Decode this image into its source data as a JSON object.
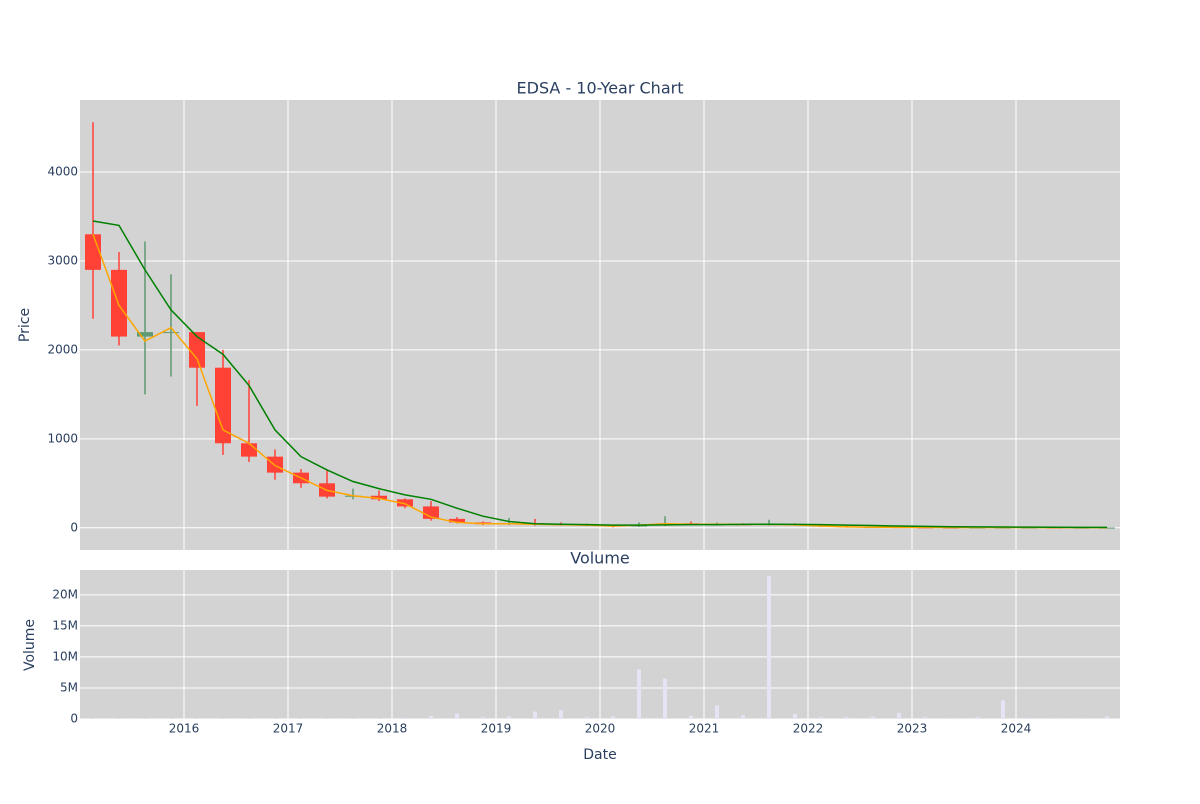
{
  "chart_data": [
    {
      "type": "candlestick",
      "title": "EDSA - 10-Year Chart",
      "y_label": "Price",
      "x": [
        2015.125,
        2015.375,
        2015.625,
        2015.875,
        2016.125,
        2016.375,
        2016.625,
        2016.875,
        2017.125,
        2017.375,
        2017.625,
        2017.875,
        2018.125,
        2018.375,
        2018.625,
        2018.875,
        2019.125,
        2019.375,
        2019.625,
        2019.875,
        2020.125,
        2020.375,
        2020.625,
        2020.875,
        2021.125,
        2021.375,
        2021.625,
        2021.875,
        2022.125,
        2022.375,
        2022.625,
        2022.875,
        2023.125,
        2023.375,
        2023.625,
        2023.875,
        2024.125,
        2024.375,
        2024.625,
        2024.875
      ],
      "open": [
        3300,
        2900,
        2150,
        2200,
        2200,
        1800,
        950,
        800,
        620,
        500,
        350,
        360,
        320,
        240,
        100,
        60,
        40,
        50,
        40,
        35,
        25,
        15,
        30,
        50,
        40,
        40,
        35,
        40,
        30,
        15,
        5,
        8,
        5,
        4,
        3,
        3,
        3,
        3,
        2,
        2
      ],
      "high": [
        4560,
        3100,
        3220,
        2850,
        2200,
        2000,
        1660,
        880,
        660,
        650,
        440,
        420,
        330,
        300,
        120,
        70,
        110,
        100,
        60,
        45,
        35,
        60,
        130,
        70,
        60,
        50,
        90,
        50,
        40,
        25,
        15,
        15,
        10,
        8,
        6,
        5,
        5,
        5,
        4,
        4
      ],
      "low": [
        2350,
        2050,
        1500,
        1700,
        1370,
        820,
        740,
        540,
        450,
        330,
        320,
        300,
        220,
        80,
        50,
        30,
        30,
        25,
        25,
        20,
        5,
        10,
        20,
        30,
        30,
        30,
        25,
        25,
        10,
        2,
        1,
        1,
        1,
        1,
        1,
        1,
        1,
        1,
        1,
        1
      ],
      "close": [
        2900,
        2150,
        2200,
        2200,
        1800,
        950,
        800,
        620,
        500,
        350,
        360,
        320,
        240,
        100,
        60,
        40,
        50,
        40,
        35,
        25,
        15,
        30,
        50,
        40,
        40,
        35,
        40,
        30,
        15,
        5,
        8,
        5,
        4,
        3,
        3,
        3,
        3,
        2,
        2,
        2
      ],
      "increasing_color": "#5f9a72",
      "decreasing_color": "#ff4136",
      "series": [
        {
          "color": "orange",
          "values": [
            3300,
            2500,
            2100,
            2250,
            1900,
            1100,
            950,
            700,
            560,
            420,
            360,
            330,
            270,
            120,
            60,
            45,
            45,
            40,
            35,
            30,
            20,
            30,
            45,
            40,
            40,
            38,
            38,
            32,
            20,
            10,
            6,
            5,
            4,
            3,
            3,
            3,
            3,
            2,
            2,
            2
          ]
        },
        {
          "color": "green",
          "values": [
            3450,
            3400,
            2900,
            2450,
            2150,
            1950,
            1600,
            1100,
            800,
            650,
            520,
            440,
            370,
            320,
            220,
            130,
            70,
            45,
            40,
            35,
            30,
            30,
            32,
            35,
            35,
            38,
            40,
            38,
            35,
            30,
            25,
            20,
            15,
            12,
            10,
            8,
            7,
            6,
            5,
            5
          ]
        }
      ],
      "ylim": [
        -250,
        4810
      ],
      "yticks": [
        0,
        1000,
        2000,
        3000,
        4000
      ],
      "grid": true
    },
    {
      "type": "bar",
      "title": "Volume",
      "y_label": "Volume",
      "x_label": "Date",
      "x": [
        2015.125,
        2015.375,
        2015.625,
        2015.875,
        2016.125,
        2016.375,
        2016.625,
        2016.875,
        2017.125,
        2017.375,
        2017.625,
        2017.875,
        2018.125,
        2018.375,
        2018.625,
        2018.875,
        2019.125,
        2019.375,
        2019.625,
        2019.875,
        2020.125,
        2020.375,
        2020.625,
        2020.875,
        2021.125,
        2021.375,
        2021.625,
        2021.875,
        2022.125,
        2022.375,
        2022.625,
        2022.875,
        2023.125,
        2023.375,
        2023.625,
        2023.875,
        2024.125,
        2024.375,
        2024.625,
        2024.875
      ],
      "values": [
        100000,
        100000,
        100000,
        100000,
        100000,
        100000,
        100000,
        100000,
        100000,
        100000,
        100000,
        100000,
        200000,
        500000,
        900000,
        300000,
        400000,
        1200000,
        1400000,
        300000,
        400000,
        8000000,
        6500000,
        500000,
        2200000,
        600000,
        23000000,
        800000,
        300000,
        300000,
        400000,
        1000000,
        300000,
        200000,
        300000,
        3000000,
        200000,
        200000,
        200000,
        400000
      ],
      "color": "#e4e4f4",
      "xlim": [
        2015,
        2025
      ],
      "xticks": [
        2016,
        2017,
        2018,
        2019,
        2020,
        2021,
        2022,
        2023,
        2024
      ],
      "ylim": [
        0,
        24000000
      ],
      "yticks": [
        0,
        {
          "value": 5000000,
          "label": "5M"
        },
        {
          "value": 10000000,
          "label": "10M"
        },
        {
          "value": 15000000,
          "label": "15M"
        },
        {
          "value": 20000000,
          "label": "20M"
        }
      ],
      "grid": true
    }
  ]
}
